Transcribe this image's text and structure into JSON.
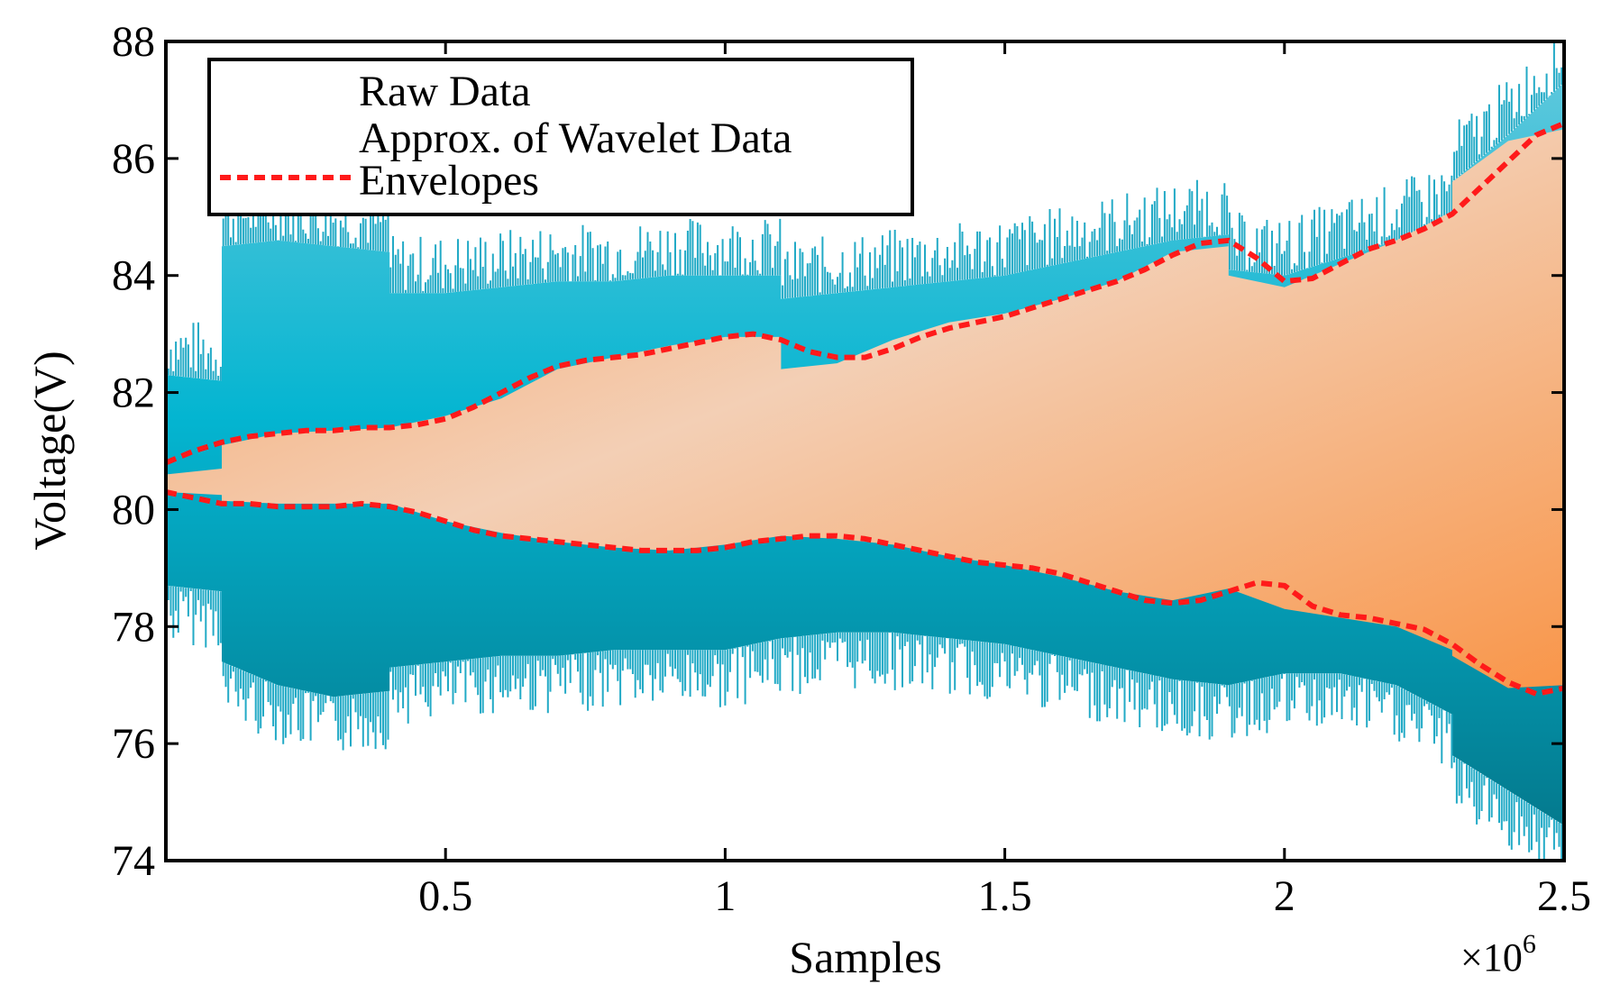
{
  "chart_data": {
    "type": "area",
    "title": "",
    "xlabel": "Samples",
    "ylabel": "Voltage(V)",
    "x_multiplier": "×10",
    "x_multiplier_exponent": "6",
    "xlim": [
      0,
      2.5
    ],
    "ylim": [
      74,
      88
    ],
    "x_ticks": [
      0.5,
      1,
      1.5,
      2,
      2.5
    ],
    "x_tick_labels": [
      "0.5",
      "1",
      "1.5",
      "2",
      "2.5"
    ],
    "y_ticks": [
      74,
      76,
      78,
      80,
      82,
      84,
      86,
      88
    ],
    "y_tick_labels": [
      "74",
      "76",
      "78",
      "80",
      "82",
      "84",
      "86",
      "88"
    ],
    "grid": false,
    "legend_position": "top-left",
    "legend": [
      {
        "label": "Raw Data",
        "style": "solid",
        "color": "#1aa3c2"
      },
      {
        "label": "Approx. of Wavelet Data",
        "style": "solid",
        "color": "#f7a56a"
      },
      {
        "label": "Envelopes",
        "style": "dashed",
        "color": "#ff1a1a"
      }
    ],
    "series": [
      {
        "name": "Raw Data",
        "x": [
          0,
          0.1,
          0.1,
          0.2,
          0.3,
          0.4,
          0.4,
          0.5,
          0.6,
          0.7,
          0.8,
          0.9,
          1.0,
          1.1,
          1.1,
          1.2,
          1.3,
          1.4,
          1.5,
          1.6,
          1.7,
          1.8,
          1.9,
          1.9,
          2.0,
          2.1,
          2.2,
          2.3,
          2.3,
          2.4,
          2.5
        ],
        "upper": [
          82.3,
          82.2,
          84.5,
          84.6,
          84.5,
          84.4,
          83.7,
          83.7,
          83.8,
          83.9,
          83.9,
          84.0,
          84.0,
          84.0,
          83.6,
          83.7,
          83.8,
          83.9,
          84.0,
          84.2,
          84.4,
          84.6,
          84.7,
          84.1,
          84.0,
          84.3,
          84.6,
          85.0,
          85.6,
          86.4,
          87.3
        ],
        "lower": [
          78.7,
          78.6,
          77.4,
          77.0,
          76.8,
          76.9,
          77.3,
          77.4,
          77.5,
          77.5,
          77.6,
          77.6,
          77.6,
          77.8,
          77.8,
          77.9,
          77.9,
          77.8,
          77.7,
          77.5,
          77.3,
          77.1,
          77.0,
          77.0,
          77.2,
          77.2,
          77.0,
          76.5,
          75.8,
          75.2,
          74.6
        ]
      },
      {
        "name": "Approx. of Wavelet Data",
        "x": [
          0,
          0.1,
          0.1,
          0.2,
          0.3,
          0.4,
          0.4,
          0.5,
          0.6,
          0.7,
          0.8,
          0.9,
          1.0,
          1.1,
          1.1,
          1.2,
          1.3,
          1.4,
          1.5,
          1.6,
          1.7,
          1.8,
          1.9,
          1.9,
          2.0,
          2.1,
          2.2,
          2.3,
          2.3,
          2.4,
          2.5
        ],
        "upper": [
          80.6,
          80.7,
          81.1,
          81.3,
          81.35,
          81.4,
          81.4,
          81.6,
          81.9,
          82.4,
          82.6,
          82.8,
          82.95,
          82.95,
          82.4,
          82.5,
          82.9,
          83.2,
          83.35,
          83.6,
          83.9,
          84.4,
          84.5,
          84.0,
          83.8,
          84.2,
          84.6,
          85.1,
          85.6,
          86.3,
          86.5
        ],
        "lower": [
          80.3,
          80.25,
          80.15,
          80.1,
          80.1,
          80.1,
          80.1,
          79.8,
          79.6,
          79.45,
          79.35,
          79.3,
          79.4,
          79.55,
          79.55,
          79.5,
          79.4,
          79.2,
          79.05,
          78.85,
          78.6,
          78.45,
          78.65,
          78.65,
          78.3,
          78.15,
          78.0,
          77.6,
          77.5,
          76.95,
          77.0
        ]
      },
      {
        "name": "Envelopes (upper)",
        "x": [
          0,
          0.05,
          0.1,
          0.15,
          0.2,
          0.25,
          0.3,
          0.35,
          0.4,
          0.45,
          0.5,
          0.55,
          0.6,
          0.65,
          0.7,
          0.75,
          0.8,
          0.85,
          0.9,
          0.95,
          1.0,
          1.05,
          1.1,
          1.15,
          1.2,
          1.25,
          1.3,
          1.35,
          1.4,
          1.45,
          1.5,
          1.55,
          1.6,
          1.65,
          1.7,
          1.75,
          1.8,
          1.85,
          1.9,
          1.95,
          2.0,
          2.05,
          2.1,
          2.15,
          2.2,
          2.25,
          2.3,
          2.35,
          2.4,
          2.45,
          2.5
        ],
        "y": [
          80.8,
          81.0,
          81.15,
          81.25,
          81.3,
          81.35,
          81.35,
          81.4,
          81.4,
          81.45,
          81.55,
          81.75,
          82.0,
          82.25,
          82.45,
          82.55,
          82.6,
          82.65,
          82.75,
          82.85,
          82.95,
          83.0,
          82.9,
          82.7,
          82.6,
          82.6,
          82.75,
          82.95,
          83.1,
          83.2,
          83.3,
          83.45,
          83.6,
          83.75,
          83.9,
          84.1,
          84.35,
          84.55,
          84.6,
          84.3,
          83.9,
          83.95,
          84.2,
          84.45,
          84.6,
          84.8,
          85.05,
          85.5,
          85.95,
          86.4,
          86.6
        ]
      },
      {
        "name": "Envelopes (lower)",
        "x": [
          0,
          0.05,
          0.1,
          0.15,
          0.2,
          0.25,
          0.3,
          0.35,
          0.4,
          0.45,
          0.5,
          0.55,
          0.6,
          0.65,
          0.7,
          0.75,
          0.8,
          0.85,
          0.9,
          0.95,
          1.0,
          1.05,
          1.1,
          1.15,
          1.2,
          1.25,
          1.3,
          1.35,
          1.4,
          1.45,
          1.5,
          1.55,
          1.6,
          1.65,
          1.7,
          1.75,
          1.8,
          1.85,
          1.9,
          1.95,
          2.0,
          2.05,
          2.1,
          2.15,
          2.2,
          2.25,
          2.3,
          2.35,
          2.4,
          2.45,
          2.5
        ],
        "y": [
          80.3,
          80.2,
          80.1,
          80.1,
          80.05,
          80.05,
          80.05,
          80.1,
          80.05,
          79.95,
          79.8,
          79.65,
          79.55,
          79.5,
          79.45,
          79.4,
          79.35,
          79.3,
          79.3,
          79.3,
          79.35,
          79.45,
          79.5,
          79.55,
          79.55,
          79.5,
          79.4,
          79.3,
          79.2,
          79.1,
          79.05,
          79.0,
          78.9,
          78.75,
          78.6,
          78.45,
          78.4,
          78.45,
          78.6,
          78.75,
          78.7,
          78.35,
          78.2,
          78.15,
          78.05,
          77.95,
          77.7,
          77.35,
          77.05,
          76.85,
          76.95
        ]
      }
    ]
  }
}
